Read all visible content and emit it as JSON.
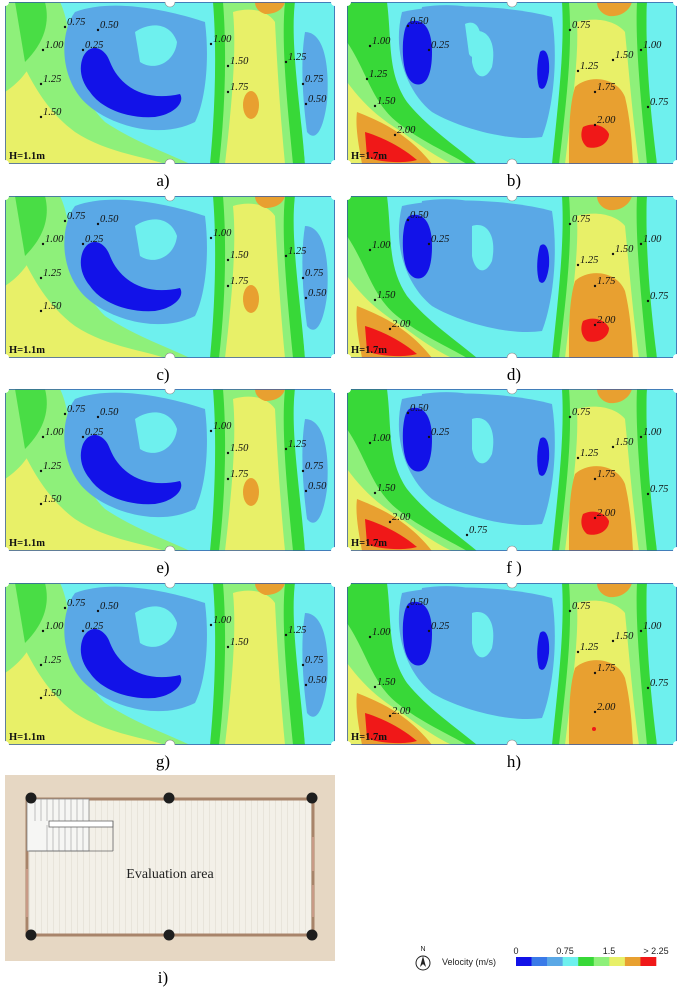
{
  "colors": {
    "lt_blue": "#5aa8e6",
    "dk_blue": "#1212e8",
    "cyan": "#6ef0ee",
    "green": "#8ef07a",
    "bright_green": "#38d838",
    "yellow": "#e8f068",
    "orange": "#e8a030",
    "red": "#f01818"
  },
  "panels": [
    {
      "label": "a)",
      "height_label": "H=1.1m",
      "contours": [
        "0.75",
        "0.50",
        "0.25",
        "1.00",
        "1.25",
        "1.50",
        "1.00",
        "1.50",
        "1.75",
        "1.25",
        "0.75",
        "0.50"
      ]
    },
    {
      "label": "b)",
      "height_label": "H=1.7m",
      "contours": [
        "0.50",
        "0.25",
        "1.00",
        "1.25",
        "1.50",
        "2.00",
        "0.75",
        "1.25",
        "1.50",
        "1.75",
        "2.00",
        "1.00",
        "0.75"
      ]
    },
    {
      "label": "c)",
      "height_label": "H=1.1m",
      "contours": [
        "0.75",
        "0.50",
        "0.25",
        "1.00",
        "1.25",
        "1.50",
        "1.00",
        "1.50",
        "1.75",
        "1.25",
        "0.75",
        "0.50"
      ]
    },
    {
      "label": "d)",
      "height_label": "H=1.7m",
      "contours": [
        "0.50",
        "0.25",
        "1.00",
        "1.50",
        "2.00",
        "0.75",
        "1.25",
        "1.50",
        "1.75",
        "2.00",
        "1.00",
        "0.75"
      ]
    },
    {
      "label": "e)",
      "height_label": "H=1.1m",
      "contours": [
        "0.75",
        "0.50",
        "0.25",
        "1.00",
        "1.25",
        "1.50",
        "1.00",
        "1.50",
        "1.75",
        "1.25",
        "0.75",
        "0.50"
      ]
    },
    {
      "label": "f )",
      "height_label": "H=1.7m",
      "contours": [
        "0.50",
        "0.25",
        "1.00",
        "1.50",
        "2.00",
        "0.75",
        "0.75",
        "1.25",
        "1.50",
        "1.75",
        "2.00",
        "1.00",
        "0.75"
      ]
    },
    {
      "label": "g)",
      "height_label": "H=1.1m",
      "contours": [
        "0.75",
        "0.50",
        "0.25",
        "1.00",
        "1.25",
        "1.50",
        "1.00",
        "1.50",
        "1.25",
        "0.75",
        "0.50"
      ]
    },
    {
      "label": "h)",
      "height_label": "H=1.7m",
      "contours": [
        "0.50",
        "0.25",
        "1.00",
        "1.50",
        "2.00",
        "0.75",
        "1.25",
        "1.50",
        "1.75",
        "2.00",
        "1.00",
        "0.75"
      ]
    }
  ],
  "floorplan": {
    "label": "i)",
    "area_text": "Evaluation area"
  },
  "legend": {
    "north_label": "N",
    "title": "Velocity (m/s)",
    "ticks": [
      "0",
      "0.75",
      "1.5",
      "> 2.25"
    ],
    "bins": [
      "#1212e8",
      "#3a7ae8",
      "#5aa8e6",
      "#6ef0ee",
      "#38d838",
      "#8ef07a",
      "#e8f068",
      "#e8a030",
      "#f01818"
    ]
  }
}
